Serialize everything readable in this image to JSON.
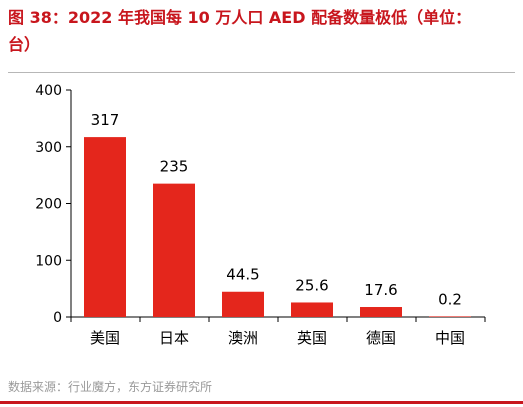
{
  "header": {
    "title_line1": "图 38：2022 年我国每 10 万人口 AED 配备数量极低（单位：",
    "title_line2": "台）"
  },
  "source": "数据来源：行业魔方，东方证券研究所",
  "colors": {
    "accent": "#c8161d",
    "bar": "#e4261c",
    "axis": "#000000"
  },
  "chart_data": {
    "type": "bar",
    "title": "2022 年我国每 10 万人口 AED 配备数量极低（单位：台）",
    "categories": [
      "美国",
      "日本",
      "澳洲",
      "英国",
      "德国",
      "中国"
    ],
    "values": [
      317,
      235,
      44.5,
      25.6,
      17.6,
      0.2
    ],
    "value_labels": [
      "317",
      "235",
      "44.5",
      "25.6",
      "17.6",
      "0.2"
    ],
    "yticks": [
      "0",
      "100",
      "200",
      "300",
      "400"
    ],
    "ylim": [
      0,
      400
    ],
    "xlabel": "",
    "ylabel": "",
    "grid": false,
    "legend": "none"
  }
}
